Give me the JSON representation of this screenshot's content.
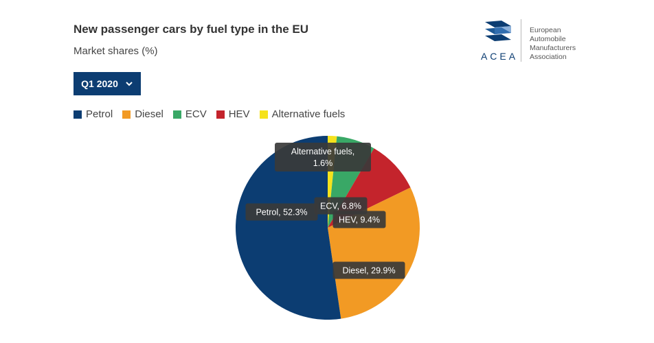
{
  "header": {
    "title": "New passenger cars by fuel type in the EU",
    "subtitle": "Market shares (%)"
  },
  "dropdown": {
    "selected": "Q1 2020"
  },
  "logo": {
    "acronym": "ACEA",
    "name_lines": [
      "European",
      "Automobile",
      "Manufacturers",
      "Association"
    ]
  },
  "legend": [
    {
      "label": "Petrol",
      "color": "#0c3d72"
    },
    {
      "label": "Diesel",
      "color": "#f29a24"
    },
    {
      "label": "ECV",
      "color": "#39a866"
    },
    {
      "label": "HEV",
      "color": "#c4242c"
    },
    {
      "label": "Alternative fuels",
      "color": "#f5e21c"
    }
  ],
  "chart_data": {
    "type": "pie",
    "title": "New passenger cars by fuel type in the EU",
    "subtitle": "Market shares (%)",
    "period": "Q1 2020",
    "unit": "%",
    "start_angle_deg": 0,
    "direction": "clockwise",
    "slices": [
      {
        "label": "Alternative fuels",
        "value": 1.6,
        "color": "#f5e21c",
        "data_label": [
          "Alternative fuels,",
          "1.6%"
        ]
      },
      {
        "label": "ECV",
        "value": 6.8,
        "color": "#39a866",
        "data_label": [
          "ECV, 6.8%"
        ]
      },
      {
        "label": "HEV",
        "value": 9.4,
        "color": "#c4242c",
        "data_label": [
          "HEV, 9.4%"
        ]
      },
      {
        "label": "Diesel",
        "value": 29.9,
        "color": "#f29a24",
        "data_label": [
          "Diesel, 29.9%"
        ]
      },
      {
        "label": "Petrol",
        "value": 52.3,
        "color": "#0c3d72",
        "data_label": [
          "Petrol, 52.3%"
        ]
      }
    ],
    "legend_position": "top-left"
  }
}
